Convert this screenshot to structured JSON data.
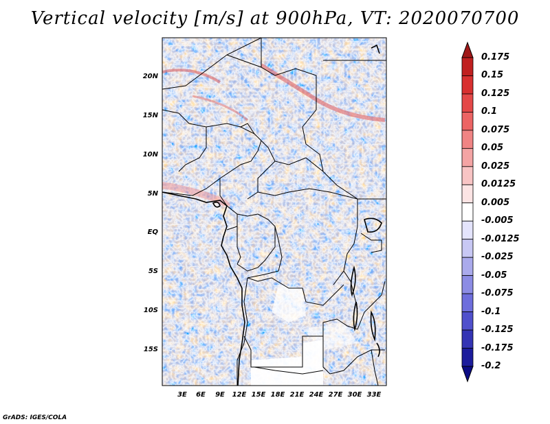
{
  "title": "Vertical velocity [m/s] at 900hPa, VT: 2020070700",
  "map": {
    "region": "Central Africa",
    "lat_labels": [
      "20N",
      "15N",
      "10N",
      "5N",
      "EQ",
      "5S",
      "10S",
      "15S"
    ],
    "lon_labels": [
      "3E",
      "6E",
      "9E",
      "12E",
      "15E",
      "18E",
      "21E",
      "24E",
      "27E",
      "30E",
      "33E"
    ]
  },
  "colorbar": {
    "labels": [
      "0.175",
      "0.15",
      "0.125",
      "0.1",
      "0.075",
      "0.05",
      "0.025",
      "0.0125",
      "0.005",
      "-0.005",
      "-0.0125",
      "-0.025",
      "-0.05",
      "-0.075",
      "-0.1",
      "-0.125",
      "-0.175",
      "-0.2"
    ],
    "colors": [
      "#a01818",
      "#c02020",
      "#d83030",
      "#e44848",
      "#ec6464",
      "#f08484",
      "#f4a4a4",
      "#f8c4c4",
      "#fce4e4",
      "#ffffff",
      "#e4e4fc",
      "#c8c8f4",
      "#aaaaec",
      "#8c8ce4",
      "#6e6edc",
      "#5050cc",
      "#3434b4",
      "#1c1c9c",
      "#0c0c84"
    ]
  },
  "credit": "GrADS: IGES/COLA"
}
